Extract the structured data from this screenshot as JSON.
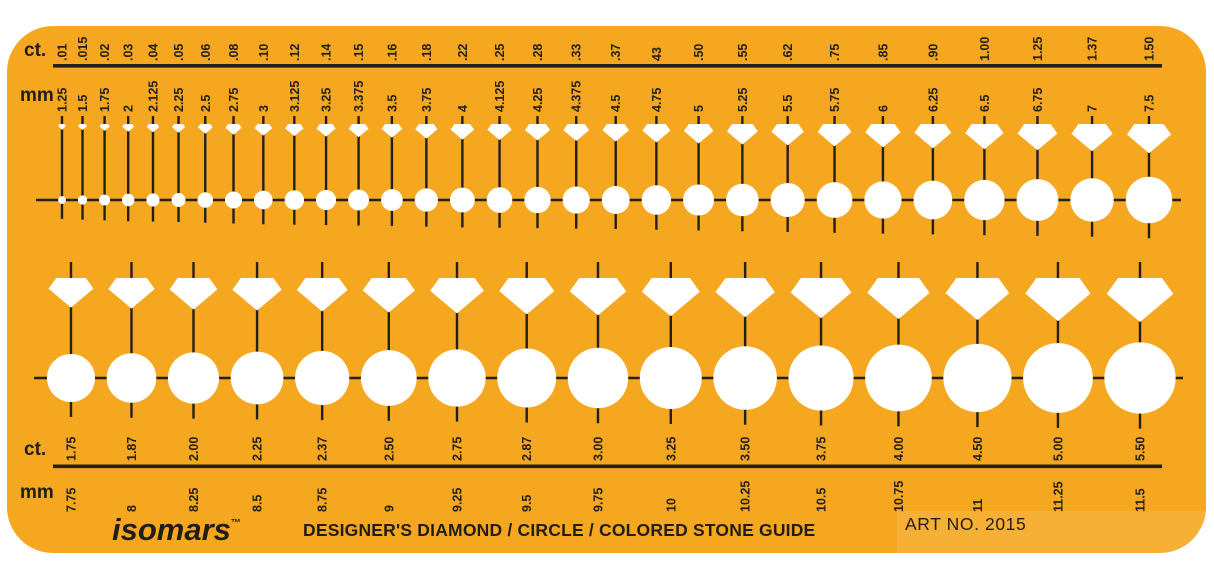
{
  "plate": {
    "background_color": "#F5A71F",
    "line_color": "#231F1A",
    "cutout_color": "#FFFFFF",
    "brand": "isomars",
    "brand_trademark": "™",
    "title": "DESIGNER'S DIAMOND / CIRCLE / COLORED STONE GUIDE",
    "art_no": "ART NO. 2015"
  },
  "top_scale": {
    "ct_header": "ct.",
    "mm_header": "mm",
    "ct_values": [
      ".01",
      ".015",
      ".02",
      ".03",
      ".04",
      ".05",
      ".06",
      ".08",
      ".10",
      ".12",
      ".14",
      ".15",
      ".16",
      ".18",
      ".22",
      ".25",
      ".28",
      ".33",
      ".37",
      "43",
      ".50",
      ".55",
      ".62",
      ".75",
      ".85",
      ".90",
      "1.00",
      "1.25",
      "1.37",
      "1.50"
    ],
    "mm_values": [
      "1.25",
      "1.5",
      "1.75",
      "2",
      "2.125",
      "2.25",
      "2.5",
      "2.75",
      "3",
      "3.125",
      "3.25",
      "3.375",
      "3.5",
      "3.75",
      "4",
      "4.125",
      "4.25",
      "4.375",
      "4.5",
      "4.75",
      "5",
      "5.25",
      "5.5",
      "5.75",
      "6",
      "6.25",
      "6.5",
      "6.75",
      "7",
      "7.5"
    ]
  },
  "bottom_scale": {
    "ct_header": "ct.",
    "mm_header": "mm",
    "ct_values": [
      "1.75",
      "1.87",
      "2.00",
      "2.25",
      "2.37",
      "2.50",
      "2.75",
      "2.87",
      "3.00",
      "3.25",
      "3.50",
      "3.75",
      "4.00",
      "4.50",
      "5.00",
      "5.50"
    ],
    "mm_values": [
      "7.75",
      "8",
      "8.25",
      "8.5",
      "8.75",
      "9",
      "9.25",
      "9.5",
      "9.75",
      "10",
      "10.25",
      "10.5",
      "10.75",
      "11",
      "11.25",
      "11.5"
    ]
  }
}
